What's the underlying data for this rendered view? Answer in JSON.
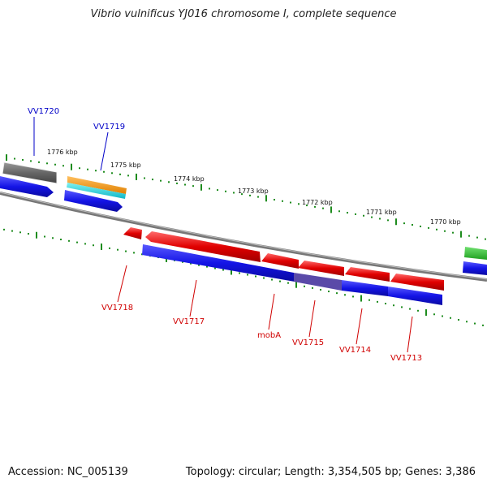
{
  "title": "Vibrio vulnificus YJ016 chromosome I, complete sequence",
  "accession": "Accession: NC_005139",
  "summary": "Topology: circular; Length: 3,354,505 bp; Genes: 3,386",
  "colors": {
    "backbone": "#808080",
    "tick": "#1e8c1e",
    "forward_gene": "#e00000",
    "reverse_gene": "#1414e6",
    "label_forward": "#d00000",
    "label_reverse": "#0000c8"
  },
  "scale_labels": [
    "1776 kbp",
    "1775 kbp",
    "1774 kbp",
    "1773 kbp",
    "1772 kbp",
    "1771 kbp",
    "1770 kbp"
  ],
  "gene_labels": [
    {
      "name": "VV1720",
      "strand": "reverse"
    },
    {
      "name": "VV1719",
      "strand": "reverse"
    },
    {
      "name": "VV1718",
      "strand": "forward"
    },
    {
      "name": "VV1717",
      "strand": "forward"
    },
    {
      "name": "mobA",
      "strand": "forward"
    },
    {
      "name": "VV1715",
      "strand": "forward"
    },
    {
      "name": "VV1714",
      "strand": "forward"
    },
    {
      "name": "VV1713",
      "strand": "forward"
    }
  ]
}
